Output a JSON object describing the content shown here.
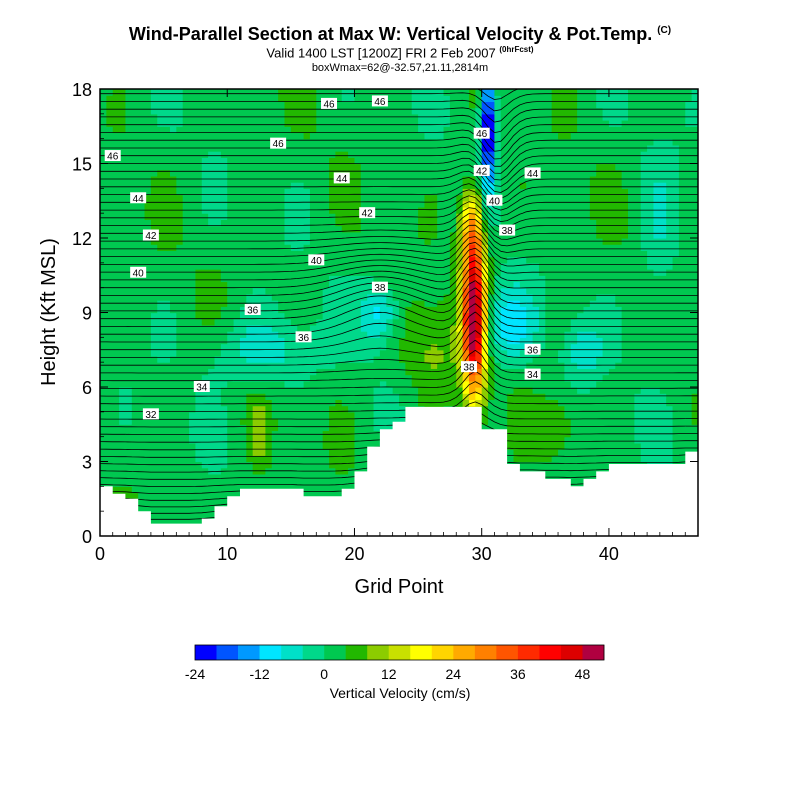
{
  "chart_data": {
    "type": "heatmap",
    "title": "Wind-Parallel Section at Max W: Vertical Velocity & Pot.Temp.",
    "title_suffix": "(C)",
    "subtitle": "Valid 1400 LST [1200Z] FRI 2 Feb 2007",
    "subtitle_suffix": "(0hrFcst)",
    "box_info": "boxWmax=62@-32.57,21.11,2814m",
    "xlabel": "Grid Point",
    "ylabel": "Height (Kft MSL)",
    "xlim": [
      0,
      47
    ],
    "ylim": [
      0,
      18
    ],
    "xticks": [
      0,
      10,
      20,
      30,
      40
    ],
    "yticks": [
      0,
      3,
      6,
      9,
      12,
      15,
      18
    ],
    "colorbar": {
      "label": "Vertical Velocity (cm/s)",
      "tick_labels": [
        "-24",
        "-12",
        "0",
        "12",
        "24",
        "36",
        "48"
      ],
      "tick_values": [
        -24,
        -12,
        0,
        12,
        24,
        36,
        48
      ],
      "bins": [
        -24,
        -20,
        -16,
        -12,
        -8,
        -4,
        0,
        4,
        8,
        12,
        16,
        20,
        24,
        28,
        32,
        36,
        40,
        44,
        48,
        52
      ],
      "colors": [
        "#0000ff",
        "#0055ff",
        "#0099ff",
        "#00e5ff",
        "#00e0c8",
        "#00d88a",
        "#00c850",
        "#22b800",
        "#8ccc00",
        "#c8e000",
        "#ffff00",
        "#ffd500",
        "#ffaa00",
        "#ff8000",
        "#ff5500",
        "#ff2a00",
        "#ff0000",
        "#dd0000",
        "#b00040"
      ]
    },
    "terrain_kft": [
      2.0,
      1.7,
      1.5,
      1.0,
      0.5,
      0.5,
      0.5,
      0.5,
      0.7,
      1.2,
      1.6,
      1.9,
      1.9,
      1.9,
      1.9,
      1.9,
      1.6,
      1.6,
      1.6,
      1.9,
      2.6,
      3.6,
      4.3,
      4.6,
      5.2,
      5.2,
      5.2,
      5.2,
      5.2,
      5.2,
      4.3,
      4.3,
      2.9,
      2.6,
      2.6,
      2.3,
      2.3,
      2.0,
      2.3,
      2.6,
      2.9,
      2.9,
      2.9,
      2.9,
      2.9,
      2.9,
      3.4,
      3.4
    ],
    "theta_contour_labels": [
      {
        "value": "32",
        "x": 4,
        "y": 4.9
      },
      {
        "value": "34",
        "x": 8,
        "y": 6.0
      },
      {
        "value": "36",
        "x": 12,
        "y": 9.1
      },
      {
        "value": "36",
        "x": 16,
        "y": 8.0
      },
      {
        "value": "38",
        "x": 22,
        "y": 10.0
      },
      {
        "value": "40",
        "x": 3,
        "y": 10.6
      },
      {
        "value": "40",
        "x": 17,
        "y": 11.1
      },
      {
        "value": "42",
        "x": 4,
        "y": 12.1
      },
      {
        "value": "42",
        "x": 21,
        "y": 13.0
      },
      {
        "value": "44",
        "x": 3,
        "y": 13.6
      },
      {
        "value": "44",
        "x": 19,
        "y": 14.4
      },
      {
        "value": "46",
        "x": 1,
        "y": 15.3
      },
      {
        "value": "46",
        "x": 14,
        "y": 15.8
      },
      {
        "value": "46",
        "x": 18,
        "y": 17.4
      },
      {
        "value": "46",
        "x": 22,
        "y": 17.5
      },
      {
        "value": "46",
        "x": 30,
        "y": 16.2
      },
      {
        "value": "42",
        "x": 30,
        "y": 14.7
      },
      {
        "value": "40",
        "x": 31,
        "y": 13.5
      },
      {
        "value": "38",
        "x": 32,
        "y": 12.3
      },
      {
        "value": "44",
        "x": 34,
        "y": 14.6
      },
      {
        "value": "38",
        "x": 29,
        "y": 6.8
      },
      {
        "value": "36",
        "x": 34,
        "y": 7.5
      },
      {
        "value": "34",
        "x": 34,
        "y": 6.5
      }
    ],
    "w_field_features": [
      {
        "kind": "updraft",
        "x_center": 29.5,
        "y_range": [
          4.5,
          12.5
        ],
        "peak_w": 48
      },
      {
        "kind": "downdraft",
        "x_center": 30.5,
        "y_range": [
          13,
          18
        ],
        "min_w": -24
      },
      {
        "kind": "weak_downdraft",
        "x_center": 22,
        "y_range": [
          8,
          10
        ],
        "min_w": -8
      },
      {
        "kind": "weak_updraft",
        "x_center": 12.5,
        "y_range": [
          3,
          5
        ],
        "peak_w": 10
      }
    ]
  }
}
